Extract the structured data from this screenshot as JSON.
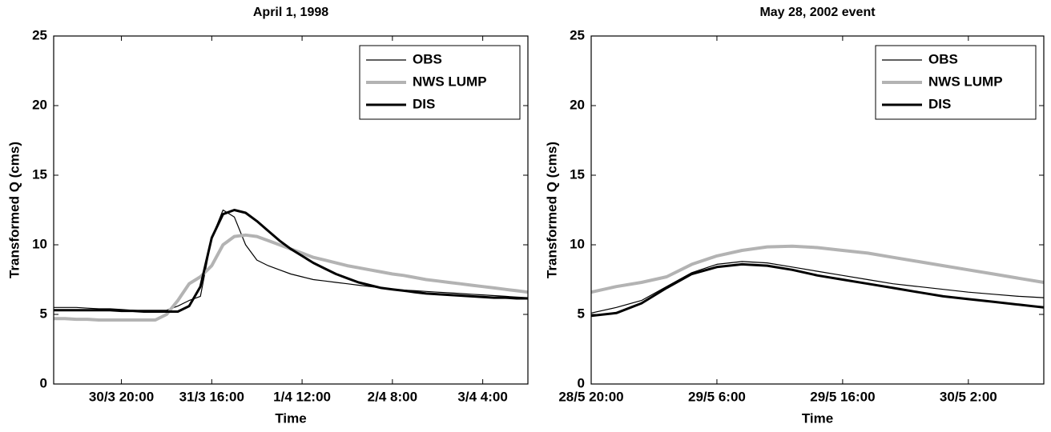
{
  "chart_data": [
    {
      "type": "line",
      "title": "April 1, 1998",
      "xlabel": "Time",
      "ylabel": "Transformed Q (cms)",
      "categories": [
        null,
        null,
        null,
        null,
        null,
        null,
        "30/3 20:00",
        null,
        null,
        null,
        null,
        null,
        null,
        null,
        "31/3 16:00",
        null,
        null,
        null,
        null,
        null,
        null,
        null,
        "1/4 12:00",
        null,
        null,
        null,
        null,
        null,
        null,
        null,
        "2/4 8:00",
        null,
        null,
        null,
        null,
        null,
        null,
        null,
        "3/4 4:00",
        null,
        null,
        null,
        null
      ],
      "series": [
        {
          "name": "OBS",
          "color": "#000000",
          "width": 1.2,
          "values": [
            5.5,
            5.5,
            5.5,
            5.45,
            5.4,
            5.4,
            5.35,
            5.3,
            5.3,
            5.3,
            5.3,
            5.6,
            6.0,
            6.3,
            10.5,
            12.5,
            12.0,
            10.0,
            8.9,
            8.5,
            8.2,
            7.9,
            7.7,
            7.5,
            7.4,
            7.3,
            7.2,
            7.1,
            7.0,
            6.9,
            6.8,
            6.75,
            6.7,
            6.65,
            6.6,
            6.55,
            6.5,
            6.45,
            6.4,
            6.35,
            6.3,
            6.25,
            6.2
          ]
        },
        {
          "name": "NWS LUMP",
          "color": "#b3b3b3",
          "width": 4,
          "values": [
            4.7,
            4.7,
            4.65,
            4.65,
            4.6,
            4.6,
            4.6,
            4.6,
            4.6,
            4.6,
            5.0,
            6.0,
            7.2,
            7.7,
            8.5,
            10.0,
            10.6,
            10.7,
            10.6,
            10.3,
            10.0,
            9.7,
            9.4,
            9.1,
            8.9,
            8.7,
            8.5,
            8.35,
            8.2,
            8.05,
            7.9,
            7.8,
            7.65,
            7.5,
            7.4,
            7.3,
            7.2,
            7.1,
            7.0,
            6.9,
            6.8,
            6.7,
            6.6
          ]
        },
        {
          "name": "DIS",
          "color": "#000000",
          "width": 3,
          "values": [
            5.3,
            5.3,
            5.3,
            5.3,
            5.3,
            5.3,
            5.25,
            5.25,
            5.2,
            5.2,
            5.2,
            5.2,
            5.6,
            7.0,
            10.5,
            12.2,
            12.5,
            12.3,
            11.7,
            11.0,
            10.3,
            9.7,
            9.2,
            8.7,
            8.3,
            7.9,
            7.6,
            7.3,
            7.1,
            6.9,
            6.8,
            6.7,
            6.6,
            6.5,
            6.45,
            6.4,
            6.35,
            6.3,
            6.25,
            6.2,
            6.2,
            6.15,
            6.15
          ]
        }
      ],
      "ylim": [
        0,
        25
      ],
      "yticks": [
        0,
        5,
        10,
        15,
        20,
        25
      ],
      "grid": false,
      "legend": "upper right"
    },
    {
      "type": "line",
      "title": "May 28, 2002 event",
      "xlabel": "Time",
      "ylabel": "Transformed Q (cms)",
      "categories": [
        "28/5 20:00",
        null,
        null,
        null,
        null,
        "29/5 6:00",
        null,
        null,
        null,
        null,
        "29/5 16:00",
        null,
        null,
        null,
        null,
        "30/5 2:00",
        null,
        null,
        null
      ],
      "series": [
        {
          "name": "OBS",
          "color": "#000000",
          "width": 1.2,
          "values": [
            5.1,
            5.5,
            6.0,
            7.0,
            8.0,
            8.6,
            8.8,
            8.7,
            8.4,
            8.1,
            7.8,
            7.5,
            7.2,
            7.0,
            6.8,
            6.6,
            6.45,
            6.3,
            6.2
          ]
        },
        {
          "name": "NWS LUMP",
          "color": "#b3b3b3",
          "width": 4,
          "values": [
            6.6,
            7.0,
            7.3,
            7.7,
            8.6,
            9.2,
            9.6,
            9.85,
            9.9,
            9.8,
            9.6,
            9.4,
            9.1,
            8.8,
            8.5,
            8.2,
            7.9,
            7.6,
            7.3
          ]
        },
        {
          "name": "DIS",
          "color": "#000000",
          "width": 3,
          "values": [
            4.9,
            5.1,
            5.8,
            6.9,
            7.9,
            8.4,
            8.6,
            8.5,
            8.2,
            7.8,
            7.5,
            7.2,
            6.9,
            6.6,
            6.3,
            6.1,
            5.9,
            5.7,
            5.5
          ]
        }
      ],
      "ylim": [
        0,
        25
      ],
      "yticks": [
        0,
        5,
        10,
        15,
        20,
        25
      ],
      "grid": false,
      "legend": "upper right"
    }
  ]
}
